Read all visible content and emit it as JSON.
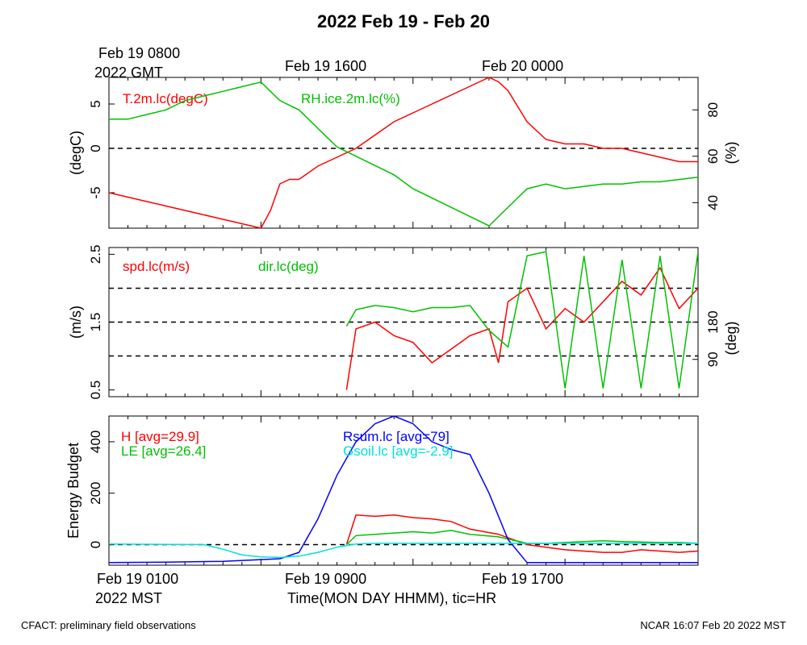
{
  "title": "2022 Feb 19 - Feb 20",
  "top_time_labels": {
    "gmt_first_line": "Feb 19 0800",
    "gmt_second_line": "2022 GMT",
    "gmt_mid": "Feb 19 1600",
    "gmt_right": "Feb 20 0000"
  },
  "bottom_time_labels": {
    "mst_first_line": "Feb 19 0100",
    "mst_second_line": "2022 MST",
    "mst_mid": "Feb 19 0900",
    "mst_right": "Feb 19 1700",
    "xlabel": "Time(MON DAY HHMM), tic=HR"
  },
  "footer": {
    "left": "CFACT: preliminary field observations",
    "right": "NCAR 16:07 Feb 20 2022 MST"
  },
  "colors": {
    "red": "#ff0000",
    "green": "#00c000",
    "blue": "#0000ff",
    "cyan": "#00e0e0",
    "black": "#000000"
  },
  "chart_data": [
    {
      "type": "line",
      "panel": "temperature-humidity",
      "x_unit": "hours since Feb 19 0100 MST",
      "xlim": [
        0,
        31
      ],
      "left_axis": {
        "label": "(degC)",
        "ticks": [
          "5",
          "0",
          "-5"
        ],
        "ylim": [
          -9,
          8
        ]
      },
      "right_axis": {
        "label": "(%)",
        "ticks": [
          "80",
          "60",
          "40"
        ],
        "ylim": [
          29,
          94
        ]
      },
      "reference_lines": [
        0
      ],
      "series": [
        {
          "name": "T.2m.lc(degC)",
          "color": "red",
          "axis": "left",
          "x": [
            0,
            1,
            2,
            3,
            4,
            5,
            6,
            7,
            8,
            8.5,
            9,
            9.5,
            10,
            11,
            12,
            13,
            14,
            15,
            16,
            17,
            18,
            19,
            19.5,
            20,
            20.5,
            21,
            22,
            23,
            24,
            25,
            26,
            27,
            28,
            29,
            30,
            31
          ],
          "y": [
            -5,
            -5.5,
            -6,
            -6.5,
            -7,
            -7.5,
            -8,
            -8.5,
            -9,
            -7,
            -4,
            -3.5,
            -3.5,
            -2,
            -1,
            0,
            1.5,
            3,
            4,
            5,
            6,
            7,
            7.5,
            8,
            7.5,
            6.5,
            3,
            1,
            0.5,
            0.5,
            0,
            0,
            -0.5,
            -1,
            -1.5,
            -1.5
          ]
        },
        {
          "name": "RH.ice.2m.lc(%)",
          "color": "green",
          "axis": "right",
          "x": [
            0,
            1,
            2,
            3,
            4,
            5,
            6,
            7,
            8,
            9,
            10,
            11,
            12,
            13,
            14,
            15,
            16,
            17,
            18,
            19,
            20,
            21,
            22,
            23,
            24,
            25,
            26,
            27,
            28,
            29,
            30,
            31
          ],
          "y": [
            76,
            76,
            78,
            80,
            84,
            86,
            88,
            90,
            92,
            84,
            80,
            72,
            64,
            60,
            56,
            52,
            46,
            42,
            38,
            34,
            30,
            38,
            46,
            48,
            46,
            47,
            48,
            48,
            49,
            49,
            50,
            51
          ]
        }
      ]
    },
    {
      "type": "line",
      "panel": "wind",
      "x_unit": "hours since Feb 19 0100 MST",
      "xlim": [
        0,
        31
      ],
      "left_axis": {
        "label": "(m/s)",
        "ticks": [
          "2.5",
          "1.5",
          "0.5"
        ],
        "ylim": [
          0.4,
          2.6
        ]
      },
      "right_axis": {
        "label": "(deg)",
        "ticks": [
          "180",
          "90"
        ],
        "ylim": [
          0,
          360
        ]
      },
      "reference_lines": [
        1.0,
        1.5,
        2.0
      ],
      "series": [
        {
          "name": "spd.lc(m/s)",
          "color": "red",
          "axis": "left",
          "x": [
            12.5,
            13,
            14,
            15,
            16,
            17,
            18,
            19,
            20,
            20.5,
            21,
            22,
            23,
            24,
            25,
            26,
            27,
            28,
            29,
            30,
            31
          ],
          "y": [
            0.5,
            1.4,
            1.5,
            1.3,
            1.2,
            0.9,
            1.1,
            1.3,
            1.4,
            0.9,
            1.8,
            2.0,
            1.4,
            1.7,
            1.5,
            1.8,
            2.1,
            1.9,
            2.3,
            1.7,
            2.0
          ]
        },
        {
          "name": "dir.lc(deg)",
          "color": "green",
          "axis": "right",
          "x": [
            12.5,
            13,
            14,
            15,
            16,
            17,
            18,
            19,
            20,
            21,
            22,
            23,
            24,
            25,
            26,
            27,
            28,
            29,
            30,
            31
          ],
          "y": [
            170,
            210,
            220,
            215,
            205,
            215,
            215,
            220,
            160,
            120,
            340,
            350,
            20,
            340,
            20,
            330,
            20,
            340,
            20,
            350
          ]
        }
      ]
    },
    {
      "type": "line",
      "panel": "energy-budget",
      "x_unit": "hours since Feb 19 0100 MST",
      "xlim": [
        0,
        31
      ],
      "left_axis": {
        "label": "Energy Budget",
        "ticks": [
          "400",
          "200",
          "0"
        ],
        "ylim": [
          -80,
          500
        ]
      },
      "reference_lines": [
        0
      ],
      "series": [
        {
          "name": "H [avg=29.9]",
          "color": "red",
          "x": [
            12.5,
            13,
            14,
            15,
            16,
            17,
            18,
            19,
            20.5,
            22,
            23,
            24,
            25,
            26,
            27,
            28,
            29,
            30,
            31
          ],
          "y": [
            0,
            115,
            110,
            115,
            105,
            100,
            90,
            60,
            40,
            0,
            -10,
            -20,
            -25,
            -30,
            -30,
            -20,
            -25,
            -30,
            -25
          ]
        },
        {
          "name": "LE [avg=26.4]",
          "color": "green",
          "x": [
            12.5,
            13,
            14,
            15,
            16,
            17,
            18,
            19,
            20.5,
            22,
            23,
            24,
            25,
            26,
            27,
            28,
            29,
            30,
            31
          ],
          "y": [
            0,
            35,
            40,
            45,
            50,
            45,
            55,
            40,
            30,
            5,
            5,
            8,
            12,
            15,
            12,
            10,
            8,
            8,
            5
          ]
        },
        {
          "name": "Rsum.lc [avg=79]",
          "color": "blue",
          "x": [
            0,
            3,
            6,
            9,
            10,
            11,
            12,
            13,
            14,
            15,
            16,
            17,
            18,
            19,
            20,
            21,
            22,
            31
          ],
          "y": [
            -70,
            -68,
            -65,
            -55,
            -30,
            100,
            270,
            400,
            470,
            500,
            470,
            400,
            370,
            350,
            200,
            20,
            -70,
            -70
          ]
        },
        {
          "name": "Gsoil.lc [avg=-2.9]",
          "color": "cyan",
          "x": [
            0,
            5,
            6,
            7,
            8,
            9,
            10,
            11,
            12,
            13,
            14,
            31
          ],
          "y": [
            2,
            0,
            -18,
            -40,
            -48,
            -50,
            -45,
            -30,
            -10,
            2,
            5,
            5
          ]
        }
      ]
    }
  ]
}
